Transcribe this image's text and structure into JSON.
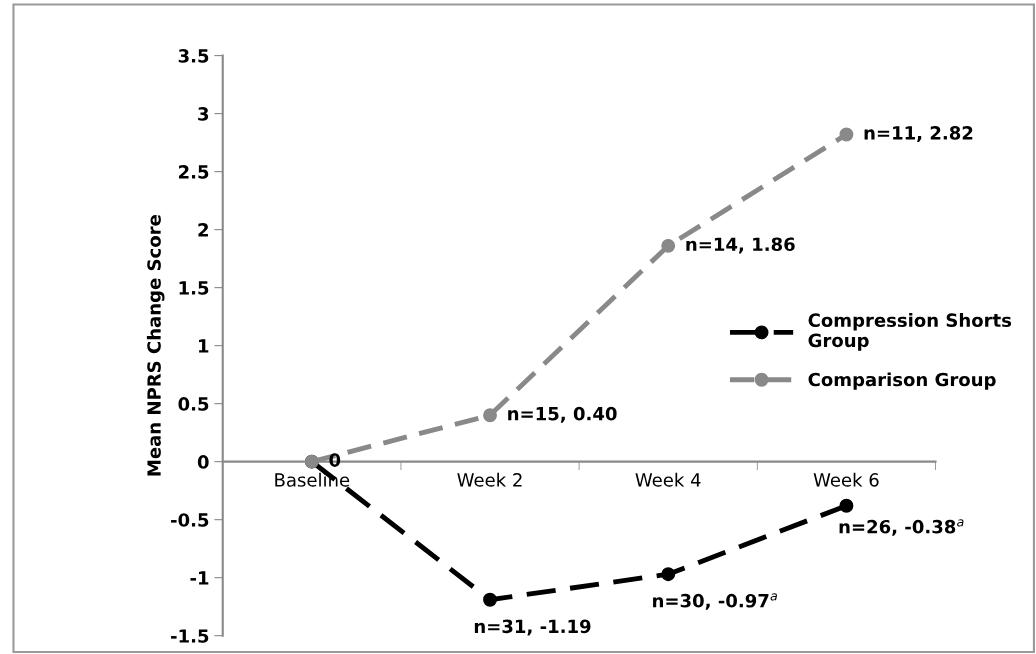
{
  "chart_data": {
    "type": "line",
    "ylabel": "Mean NPRS Change Score",
    "categories": [
      "Baseline",
      "Week 2",
      "Week 4",
      "Week 6"
    ],
    "series": [
      {
        "name": "Compression Shorts Group",
        "color": "#000000",
        "values": [
          0,
          -1.19,
          -0.97,
          -0.38
        ],
        "value_labels": [
          "0",
          "n=31, -1.19",
          "n=30, -0.97$^{a}$",
          "n=26, -0.38$^{a}$"
        ],
        "line_style": "dashed"
      },
      {
        "name": "Comparison Group",
        "color": "#898989",
        "values": [
          0,
          0.4,
          1.86,
          2.82
        ],
        "value_labels": [
          null,
          "n=15, 0.40",
          "n=14, 1.86",
          "n=11, 2.82"
        ],
        "line_style": "dashed"
      }
    ],
    "ylim": [
      -1.5,
      3.5
    ],
    "yticks": [
      3.5,
      3,
      2.5,
      2,
      1.5,
      1,
      0.5,
      0,
      -0.5,
      -1,
      -1.5
    ],
    "grid": false,
    "legend": "right",
    "marker": "circle"
  }
}
